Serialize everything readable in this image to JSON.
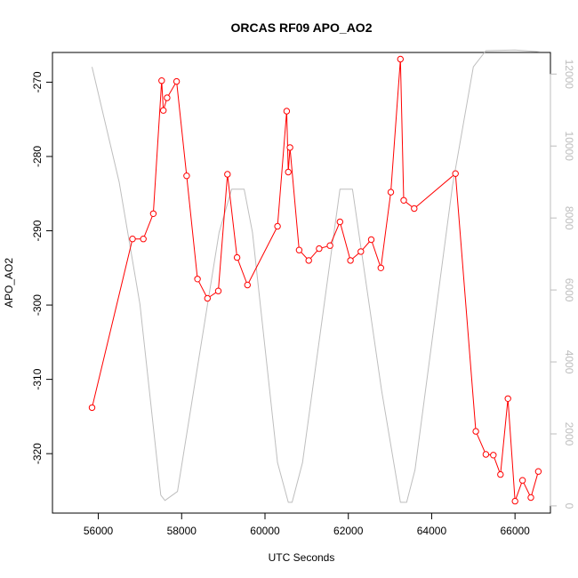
{
  "chart_data": {
    "type": "line",
    "title": "ORCAS RF09 APO_AO2",
    "xlabel": "UTC Seconds",
    "ylabel": "APO_AO2",
    "xlim": [
      54900,
      66850
    ],
    "ylim": [
      -328,
      -266
    ],
    "y2lim": [
      -200,
      12600
    ],
    "x_ticks": [
      56000,
      58000,
      60000,
      62000,
      64000,
      66000
    ],
    "y_ticks": [
      -270,
      -280,
      -290,
      -300,
      -310,
      -320
    ],
    "y2_ticks": [
      0,
      2000,
      4000,
      6000,
      8000,
      10000,
      12000
    ],
    "grid": false,
    "colors": {
      "primary": "#ff0000",
      "secondary": "#bebebe",
      "axis": "#000000",
      "secondary_axis": "#bdbdbd"
    },
    "series": [
      {
        "axis": "left",
        "style": "line+markers",
        "x": [
          55850,
          56820,
          57080,
          57320,
          57520,
          57560,
          57650,
          57880,
          58120,
          58380,
          58620,
          58880,
          59100,
          59330,
          59580,
          60300,
          60520,
          60560,
          60600,
          60820,
          61050,
          61300,
          61560,
          61800,
          62050,
          62300,
          62550,
          62780,
          63020,
          63250,
          63330,
          63580,
          64570,
          65060,
          65300,
          65480,
          65650,
          65830,
          66000,
          66180,
          66380,
          66560
        ],
        "y": [
          -313.8,
          -291.1,
          -291.1,
          -287.7,
          -269.8,
          -273.8,
          -272.1,
          -269.9,
          -282.6,
          -296.5,
          -299.1,
          -298.1,
          -282.4,
          -293.6,
          -297.3,
          -289.4,
          -273.9,
          -282.1,
          -278.8,
          -292.6,
          -294.0,
          -292.4,
          -292.0,
          -288.8,
          -294.0,
          -292.8,
          -291.2,
          -295.0,
          -284.8,
          -266.9,
          -285.9,
          -287.0,
          -282.3,
          -317.0,
          -320.1,
          -320.2,
          -322.8,
          -312.6,
          -326.4,
          -323.6,
          -325.9,
          -322.4
        ]
      },
      {
        "axis": "right",
        "style": "line",
        "x": [
          55850,
          56500,
          57000,
          57500,
          57600,
          57900,
          58900,
          59200,
          59500,
          59700,
          60300,
          60560,
          60650,
          60900,
          61800,
          62100,
          62800,
          63250,
          63400,
          63600,
          64500,
          65000,
          65300,
          66000,
          66600
        ],
        "y": [
          12200,
          9000,
          5600,
          300,
          150,
          400,
          7600,
          8800,
          8800,
          7600,
          1200,
          100,
          100,
          1200,
          8800,
          8800,
          3200,
          100,
          100,
          1000,
          8900,
          12200,
          12650,
          12670,
          12620
        ]
      }
    ]
  }
}
